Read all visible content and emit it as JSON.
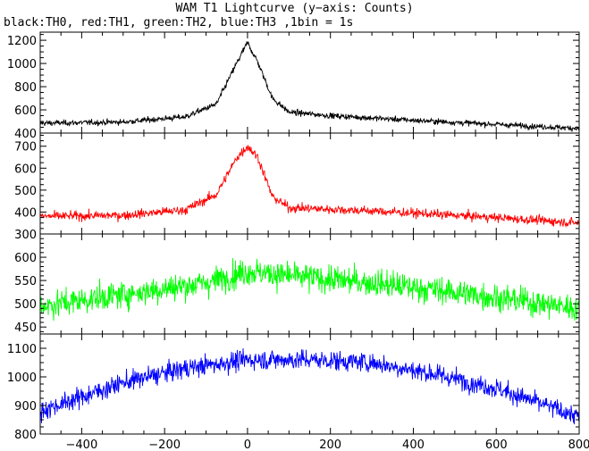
{
  "chart_data": {
    "type": "line",
    "title": "WAM T1 Lightcurve (y−axis: Counts)",
    "subtitle": "black:TH0, red:TH1, green:TH2, blue:TH3 ,1bin = 1s",
    "x_range": [
      -500,
      800
    ],
    "x_ticks": [
      -400,
      -200,
      0,
      200,
      400,
      600,
      800
    ],
    "x_tick_labels": [
      "−400",
      "−200",
      "0",
      "200",
      "400",
      "600",
      "800"
    ],
    "panels": [
      {
        "series": "TH0",
        "color": "#000000",
        "ylim": [
          400,
          1270
        ],
        "y_ticks": [
          400,
          600,
          800,
          1000,
          1200
        ],
        "baseline": [
          [
            -500,
            485
          ],
          [
            -300,
            495
          ],
          [
            -150,
            540
          ],
          [
            -75,
            650
          ],
          [
            -25,
            1010
          ],
          [
            0,
            1180
          ],
          [
            25,
            1010
          ],
          [
            60,
            700
          ],
          [
            100,
            580
          ],
          [
            200,
            550
          ],
          [
            400,
            510
          ],
          [
            600,
            475
          ],
          [
            800,
            440
          ]
        ],
        "noise": 20
      },
      {
        "series": "TH1",
        "color": "#ff0000",
        "ylim": [
          300,
          760
        ],
        "y_ticks": [
          300,
          400,
          500,
          600,
          700
        ],
        "baseline": [
          [
            -500,
            380
          ],
          [
            -300,
            385
          ],
          [
            -150,
            410
          ],
          [
            -75,
            480
          ],
          [
            -25,
            650
          ],
          [
            0,
            700
          ],
          [
            25,
            650
          ],
          [
            60,
            470
          ],
          [
            100,
            420
          ],
          [
            300,
            405
          ],
          [
            600,
            375
          ],
          [
            800,
            350
          ]
        ],
        "noise": 17
      },
      {
        "series": "TH2",
        "color": "#00ff00",
        "ylim": [
          435,
          650
        ],
        "y_ticks": [
          450,
          500,
          550,
          600
        ],
        "baseline": [
          [
            -500,
            495
          ],
          [
            -300,
            520
          ],
          [
            -100,
            545
          ],
          [
            0,
            570
          ],
          [
            100,
            560
          ],
          [
            300,
            545
          ],
          [
            500,
            525
          ],
          [
            800,
            490
          ]
        ],
        "noise": 24
      },
      {
        "series": "TH3",
        "color": "#0000ff",
        "ylim": [
          800,
          1150
        ],
        "y_ticks": [
          800,
          900,
          1000,
          1100
        ],
        "baseline": [
          [
            -500,
            880
          ],
          [
            -300,
            980
          ],
          [
            -150,
            1030
          ],
          [
            0,
            1060
          ],
          [
            150,
            1060
          ],
          [
            300,
            1050
          ],
          [
            450,
            1010
          ],
          [
            600,
            960
          ],
          [
            800,
            860
          ]
        ],
        "noise": 28
      }
    ]
  }
}
